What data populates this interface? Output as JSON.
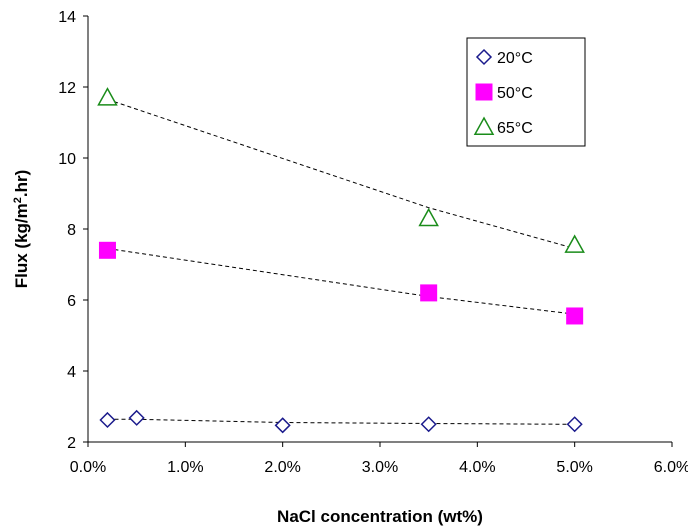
{
  "chart_data": {
    "type": "scatter",
    "xlabel": "NaCl concentration (wt%)",
    "ylabel_main": "Flux (kg/m",
    "ylabel_sup": "2",
    "ylabel_tail": ".hr)",
    "xlim": [
      0,
      0.06
    ],
    "ylim": [
      2,
      14
    ],
    "x_ticks": [
      0,
      0.01,
      0.02,
      0.03,
      0.04,
      0.05,
      0.06
    ],
    "x_tick_labels": [
      "0.0%",
      "1.0%",
      "2.0%",
      "3.0%",
      "4.0%",
      "5.0%",
      "6.0%"
    ],
    "y_ticks": [
      2,
      4,
      6,
      8,
      10,
      12,
      14
    ],
    "y_tick_labels": [
      "2",
      "4",
      "6",
      "8",
      "10",
      "12",
      "14"
    ],
    "grid": false,
    "legend_position": "top-right",
    "trendlines": "dashed",
    "series": [
      {
        "name": "20°C",
        "marker": "diamond",
        "color": "#1a1a8c",
        "filled": false,
        "x": [
          0.002,
          0.005,
          0.02,
          0.035,
          0.05
        ],
        "y": [
          2.62,
          2.68,
          2.47,
          2.5,
          2.5
        ],
        "trend_y": [
          2.64,
          2.64,
          2.55,
          2.52,
          2.5
        ]
      },
      {
        "name": "50°C",
        "marker": "square",
        "color": "#ff00ff",
        "filled": true,
        "x": [
          0.002,
          0.035,
          0.05
        ],
        "y": [
          7.4,
          6.2,
          5.55
        ],
        "trend_y": [
          7.45,
          6.1,
          5.6
        ]
      },
      {
        "name": "65°C",
        "marker": "triangle",
        "color": "#1a8c1a",
        "filled": false,
        "x": [
          0.002,
          0.035,
          0.05
        ],
        "y": [
          11.7,
          8.3,
          7.55
        ],
        "trend_y": [
          11.65,
          8.6,
          7.45
        ]
      }
    ]
  }
}
